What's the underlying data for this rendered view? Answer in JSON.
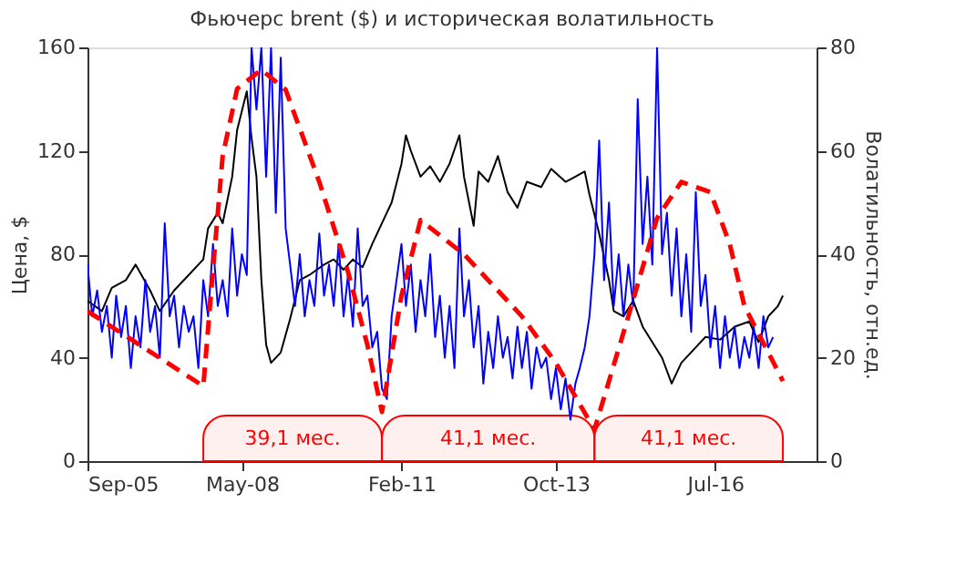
{
  "chart_data": {
    "type": "line",
    "title": "Фьючерс brent ($) и историческая волатильность",
    "ylabel": "Цена, $",
    "y2label": "Волатильность, отн.ед.",
    "xlim": [
      "2005-09",
      "2018-04"
    ],
    "xticks": [
      {
        "value": "2005-09",
        "label": "Sep-05"
      },
      {
        "value": "2008-05",
        "label": "May-08"
      },
      {
        "value": "2011-02",
        "label": "Feb-11"
      },
      {
        "value": "2013-10",
        "label": "Oct-13"
      },
      {
        "value": "2016-07",
        "label": "Jul-16"
      }
    ],
    "ylim": [
      0,
      160
    ],
    "yticks": [
      0,
      40,
      80,
      120,
      160
    ],
    "y2lim": [
      0,
      80
    ],
    "y2ticks": [
      0,
      20,
      40,
      60,
      80
    ],
    "series": [
      {
        "type": "line",
        "color": "#000000",
        "x": [
          "2005-09",
          "2005-12",
          "2006-02",
          "2006-05",
          "2006-07",
          "2006-10",
          "2006-12",
          "2007-03",
          "2007-06",
          "2007-09",
          "2007-10",
          "2007-12",
          "2008-01",
          "2008-03",
          "2008-04",
          "2008-06",
          "2008-07",
          "2008-08",
          "2008-09",
          "2008-10",
          "2008-11",
          "2009-01",
          "2009-03",
          "2009-05",
          "2009-07",
          "2009-10",
          "2009-12",
          "2010-02",
          "2010-04",
          "2010-06",
          "2010-08",
          "2010-10",
          "2010-12",
          "2011-02",
          "2011-03",
          "2011-04",
          "2011-06",
          "2011-08",
          "2011-10",
          "2011-12",
          "2012-02",
          "2012-03",
          "2012-05",
          "2012-06",
          "2012-08",
          "2012-10",
          "2012-12",
          "2013-02",
          "2013-04",
          "2013-07",
          "2013-09",
          "2013-12",
          "2014-02",
          "2014-04",
          "2014-05",
          "2014-07",
          "2014-09",
          "2014-10",
          "2014-12",
          "2015-02",
          "2015-04",
          "2015-06",
          "2015-08",
          "2015-10",
          "2015-12",
          "2016-03",
          "2016-05",
          "2016-08",
          "2016-11",
          "2017-02",
          "2017-04",
          "2017-06",
          "2017-08",
          "2017-09"
        ],
        "values": [
          62,
          58,
          67,
          70,
          76,
          66,
          58,
          66,
          72,
          78,
          90,
          96,
          92,
          110,
          128,
          143,
          125,
          110,
          70,
          45,
          38,
          42,
          55,
          70,
          72,
          76,
          78,
          74,
          78,
          75,
          84,
          92,
          100,
          115,
          126,
          120,
          110,
          114,
          108,
          115,
          126,
          110,
          91,
          112,
          108,
          118,
          104,
          98,
          108,
          106,
          113,
          108,
          110,
          112,
          103,
          88,
          70,
          58,
          56,
          62,
          52,
          46,
          40,
          30,
          38,
          44,
          48,
          47,
          52,
          54,
          46,
          56,
          60,
          64
        ]
      },
      {
        "type": "line",
        "axis": "y2",
        "color": "#0000ff",
        "x": [
          "2005-09",
          "2005-10",
          "2005-11",
          "2005-12",
          "2006-01",
          "2006-02",
          "2006-03",
          "2006-04",
          "2006-05",
          "2006-06",
          "2006-07",
          "2006-08",
          "2006-09",
          "2006-10",
          "2006-11",
          "2006-12",
          "2007-01",
          "2007-02",
          "2007-03",
          "2007-04",
          "2007-05",
          "2007-06",
          "2007-07",
          "2007-08",
          "2007-09",
          "2007-10",
          "2007-11",
          "2007-12",
          "2008-01",
          "2008-02",
          "2008-03",
          "2008-04",
          "2008-05",
          "2008-06",
          "2008-07",
          "2008-08",
          "2008-09",
          "2008-10",
          "2008-11",
          "2008-12",
          "2009-01",
          "2009-02",
          "2009-03",
          "2009-04",
          "2009-05",
          "2009-06",
          "2009-07",
          "2009-08",
          "2009-09",
          "2009-10",
          "2009-11",
          "2009-12",
          "2010-01",
          "2010-02",
          "2010-03",
          "2010-04",
          "2010-05",
          "2010-06",
          "2010-07",
          "2010-08",
          "2010-09",
          "2010-10",
          "2010-11",
          "2010-12",
          "2011-01",
          "2011-02",
          "2011-03",
          "2011-04",
          "2011-05",
          "2011-06",
          "2011-07",
          "2011-08",
          "2011-09",
          "2011-10",
          "2011-11",
          "2011-12",
          "2012-01",
          "2012-02",
          "2012-03",
          "2012-04",
          "2012-05",
          "2012-06",
          "2012-07",
          "2012-08",
          "2012-09",
          "2012-10",
          "2012-11",
          "2012-12",
          "2013-01",
          "2013-02",
          "2013-03",
          "2013-04",
          "2013-05",
          "2013-06",
          "2013-07",
          "2013-08",
          "2013-09",
          "2013-10",
          "2013-11",
          "2013-12",
          "2014-01",
          "2014-02",
          "2014-03",
          "2014-04",
          "2014-05",
          "2014-06",
          "2014-07",
          "2014-08",
          "2014-09",
          "2014-10",
          "2014-11",
          "2014-12",
          "2015-01",
          "2015-02",
          "2015-03",
          "2015-04",
          "2015-05",
          "2015-06",
          "2015-07",
          "2015-08",
          "2015-09",
          "2015-10",
          "2015-11",
          "2015-12",
          "2016-01",
          "2016-02",
          "2016-03",
          "2016-04",
          "2016-05",
          "2016-06",
          "2016-07",
          "2016-08",
          "2016-09",
          "2016-10",
          "2016-11",
          "2016-12",
          "2017-01",
          "2017-02",
          "2017-03",
          "2017-04",
          "2017-05",
          "2017-06",
          "2017-07"
        ],
        "values": [
          38,
          28,
          33,
          25,
          30,
          20,
          32,
          24,
          30,
          18,
          28,
          22,
          35,
          25,
          30,
          20,
          46,
          28,
          32,
          22,
          30,
          25,
          28,
          18,
          35,
          28,
          42,
          30,
          35,
          28,
          45,
          32,
          40,
          36,
          80,
          68,
          80,
          55,
          80,
          48,
          78,
          45,
          38,
          30,
          40,
          28,
          35,
          30,
          44,
          32,
          38,
          30,
          42,
          28,
          36,
          26,
          45,
          30,
          32,
          22,
          25,
          14,
          12,
          28,
          35,
          42,
          30,
          38,
          25,
          35,
          28,
          40,
          24,
          32,
          20,
          30,
          18,
          45,
          28,
          35,
          22,
          30,
          15,
          25,
          18,
          28,
          20,
          24,
          16,
          26,
          18,
          25,
          14,
          22,
          18,
          20,
          12,
          18,
          10,
          16,
          8,
          15,
          18,
          22,
          28,
          40,
          62,
          35,
          50,
          30,
          40,
          28,
          38,
          30,
          70,
          42,
          55,
          38,
          80,
          40,
          48,
          32,
          45,
          28,
          40,
          25,
          52,
          30,
          36,
          22,
          30,
          18,
          28,
          20,
          26,
          18,
          24,
          20,
          26,
          18,
          28,
          22,
          24
        ]
      },
      {
        "type": "line",
        "axis": "y2",
        "color": "#ff0000",
        "line_style": "dashed",
        "x": [
          "2005-09",
          "2007-09",
          "2007-11",
          "2008-01",
          "2008-04",
          "2008-09",
          "2009-02",
          "2009-09",
          "2010-03",
          "2010-07",
          "2010-10",
          "2011-02",
          "2011-06",
          "2012-03",
          "2013-03",
          "2013-10",
          "2014-06",
          "2015-01",
          "2015-07",
          "2015-12",
          "2016-06",
          "2016-10",
          "2017-01",
          "2017-09"
        ],
        "values": [
          29,
          14.5,
          37,
          59,
          72,
          75.7,
          71.8,
          54,
          36.6,
          22.5,
          9.5,
          32,
          46.6,
          40,
          28,
          19,
          6.1,
          28,
          47,
          54,
          52,
          42,
          30,
          15.5
        ]
      }
    ],
    "bands": [
      {
        "axis": "x",
        "from": "2007-09",
        "to": "2010-10",
        "label": "39,1 мес.",
        "color": "#ff0000"
      },
      {
        "axis": "x",
        "from": "2010-10",
        "to": "2014-06",
        "label": "41,1 мес.",
        "color": "#ff0000"
      },
      {
        "axis": "x",
        "from": "2014-06",
        "to": "2017-09",
        "label": "41,1 мес.",
        "color": "#ff0000"
      }
    ]
  }
}
